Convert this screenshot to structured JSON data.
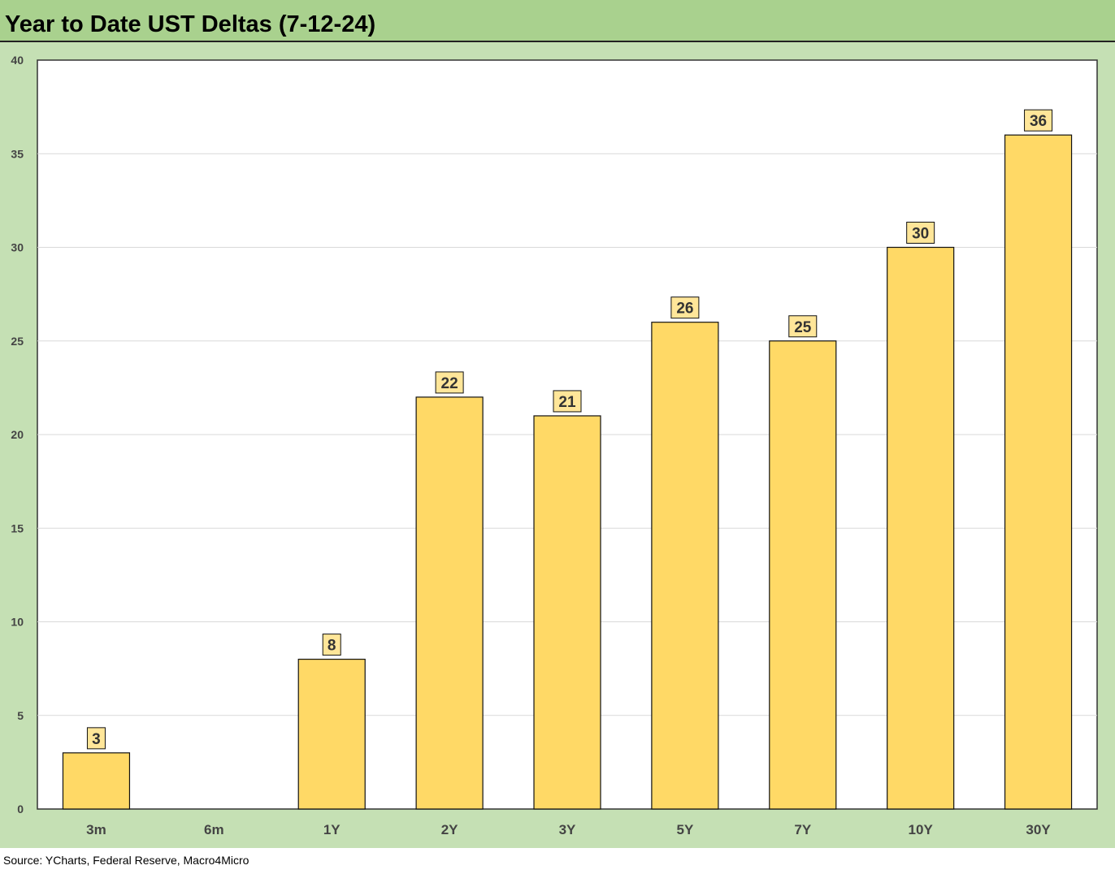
{
  "title": "Year to Date UST Deltas (7-12-24)",
  "source": "Source: YCharts, Federal Reserve, Macro4Micro",
  "colors": {
    "title_bg": "#a9d18e",
    "frame_bg": "#c5e0b4",
    "plot_bg": "#ffffff",
    "bar_fill": "#ffd966",
    "bar_stroke": "#111111",
    "label_fill": "#ffe699",
    "grid": "#d9d9d9"
  },
  "chart_data": {
    "type": "bar",
    "categories": [
      "3m",
      "6m",
      "1Y",
      "2Y",
      "3Y",
      "5Y",
      "7Y",
      "10Y",
      "30Y"
    ],
    "values": [
      3,
      0,
      8,
      22,
      21,
      26,
      25,
      30,
      36
    ],
    "data_labels": [
      "3",
      "",
      "8",
      "22",
      "21",
      "26",
      "25",
      "30",
      "36"
    ],
    "ylim": [
      0,
      40
    ],
    "yticks": [
      0,
      5,
      10,
      15,
      20,
      25,
      30,
      35,
      40
    ],
    "ytick_labels": [
      "0",
      "5",
      "10",
      "15",
      "20",
      "25",
      "30",
      "35",
      "40"
    ],
    "grid": true,
    "legend": "none"
  }
}
